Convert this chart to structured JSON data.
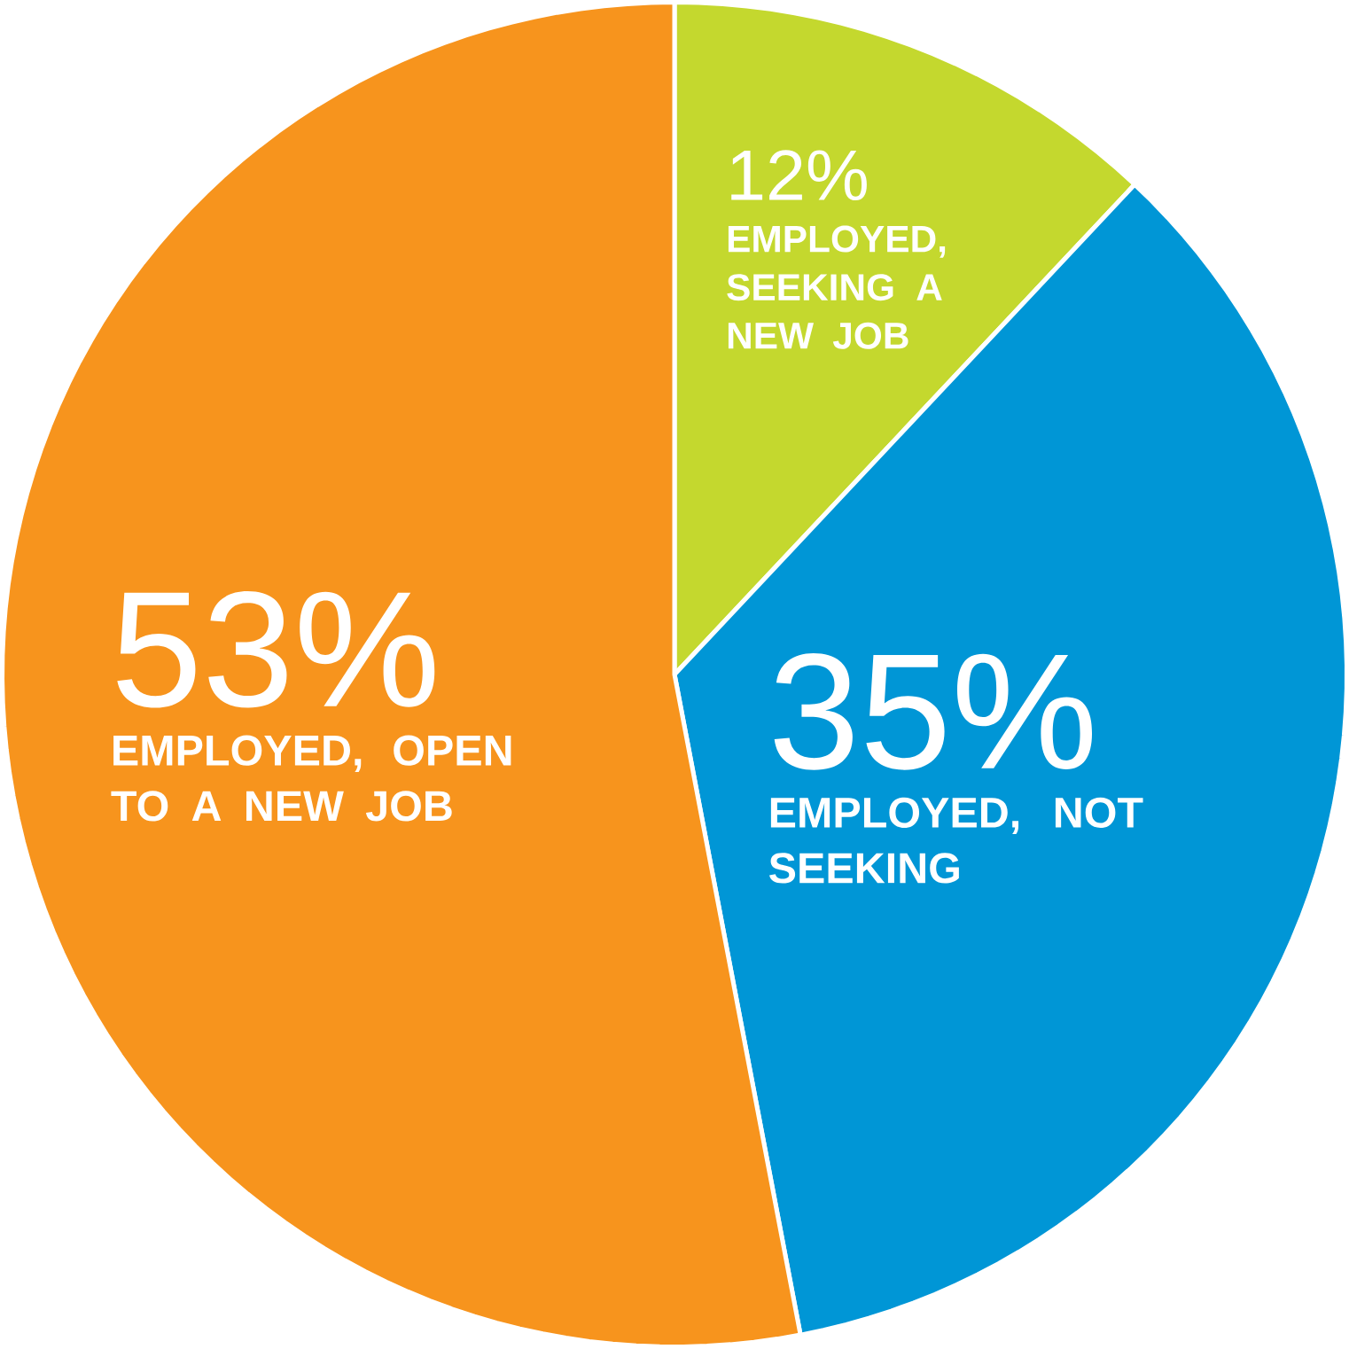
{
  "chart_data": {
    "type": "pie",
    "categories": [
      "EMPLOYED, SEEKING A NEW JOB",
      "EMPLOYED, NOT SEEKING",
      "EMPLOYED, OPEN TO A NEW JOB"
    ],
    "values": [
      12,
      35,
      53
    ],
    "colors": [
      "#c4d82e",
      "#0096d6",
      "#f7941d"
    ],
    "value_labels": [
      "12%",
      "35%",
      "53%"
    ]
  }
}
